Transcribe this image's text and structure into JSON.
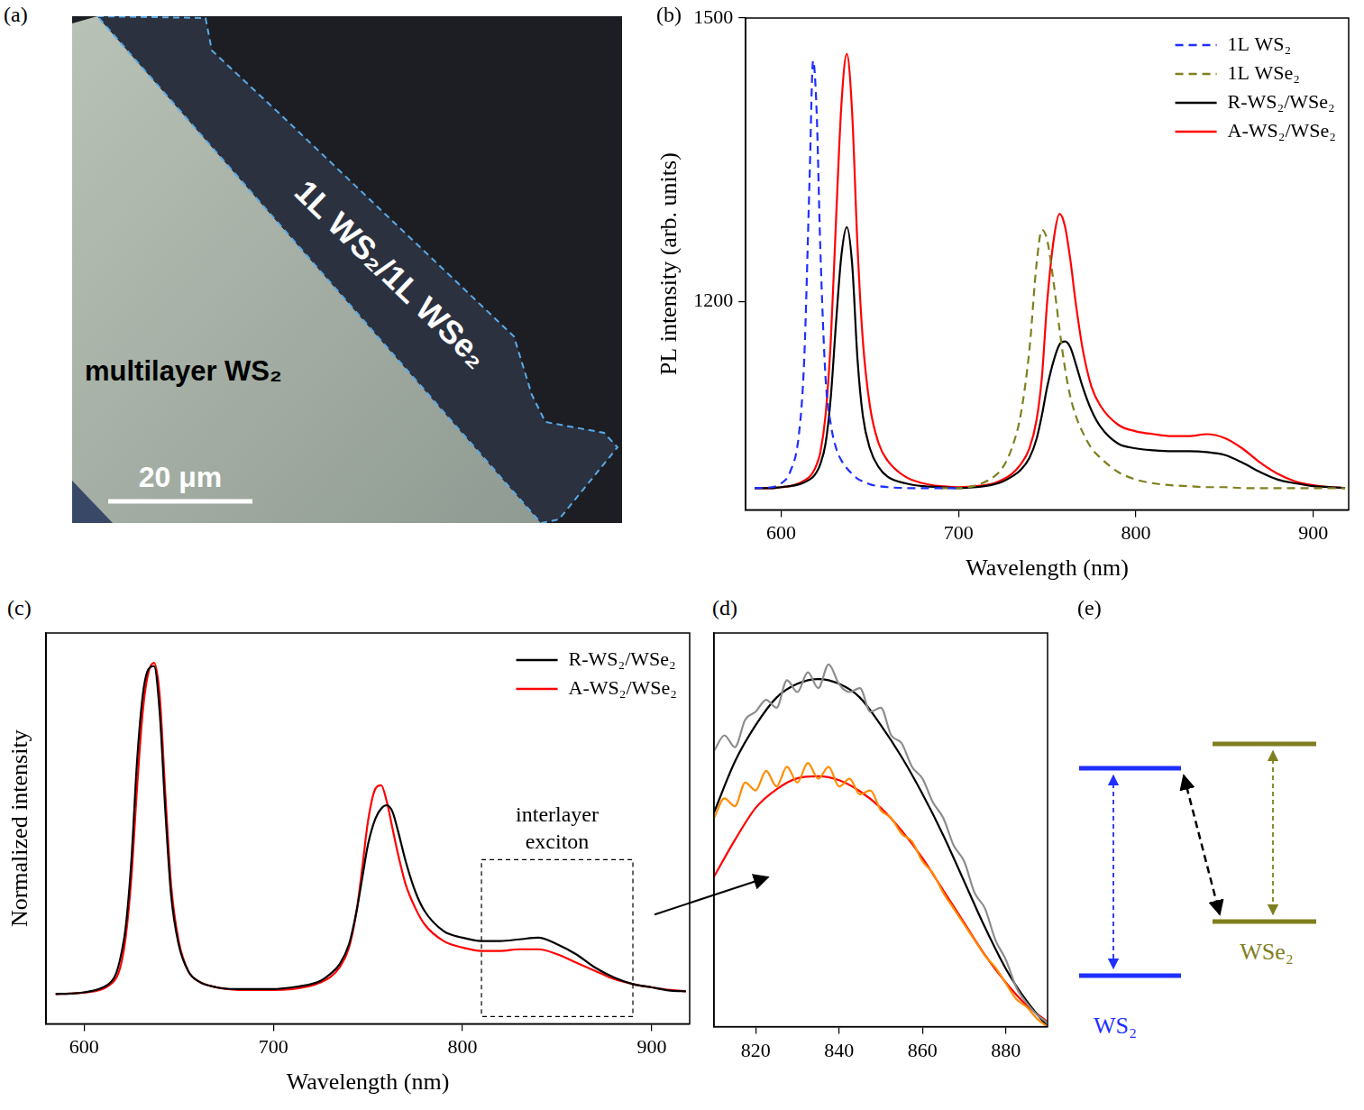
{
  "image": {
    "panel": "(a)",
    "heterostructure_label": "1L WS₂/1L WSe₂",
    "substrate_label": "multilayer WS₂",
    "scale_bar": "20 μm"
  },
  "chart_data": [
    {
      "type": "line",
      "panel": "(b)",
      "xlabel": "Wavelength (nm)",
      "ylabel": "PL intensity (arb. units)",
      "xlim": [
        580,
        920
      ],
      "xticks": [
        600,
        700,
        800,
        900
      ],
      "ylim": [
        980,
        1500
      ],
      "yticks": [
        1200,
        1500
      ],
      "legend": "top right",
      "x": [
        585,
        595,
        600,
        605,
        610,
        613,
        616,
        618,
        620,
        622,
        625,
        628,
        631,
        634,
        637,
        640,
        643,
        646,
        650,
        655,
        660,
        670,
        680,
        690,
        700,
        710,
        720,
        725,
        730,
        735,
        740,
        744,
        747,
        750,
        754,
        757,
        760,
        763,
        766,
        770,
        775,
        780,
        790,
        800,
        810,
        820,
        830,
        840,
        850,
        860,
        870,
        880,
        890,
        900,
        910,
        918
      ],
      "series": [
        {
          "name": "1L WS₂",
          "color": "#1f2fff",
          "line_style": "dashed",
          "values": [
            1003,
            1004,
            1008,
            1020,
            1060,
            1140,
            1330,
            1455,
            1400,
            1260,
            1120,
            1070,
            1045,
            1032,
            1024,
            1018,
            1013,
            1010,
            1007,
            1005,
            1004,
            1003,
            1003,
            1003,
            1003,
            null,
            null,
            null,
            null,
            null,
            null,
            null,
            null,
            null,
            null,
            null,
            null,
            null,
            null,
            null,
            null,
            null,
            null,
            null,
            null,
            null,
            null,
            null,
            null,
            null,
            null,
            null,
            null,
            null,
            null,
            null
          ]
        },
        {
          "name": "1L WSe₂",
          "color": "#7f7f1f",
          "line_style": "dashed",
          "values": [
            null,
            null,
            null,
            null,
            null,
            null,
            null,
            null,
            null,
            null,
            null,
            null,
            null,
            null,
            null,
            null,
            null,
            null,
            null,
            null,
            null,
            null,
            null,
            1003,
            1003,
            1006,
            1015,
            1025,
            1045,
            1080,
            1150,
            1240,
            1276,
            1265,
            1215,
            1170,
            1130,
            1100,
            1080,
            1062,
            1045,
            1035,
            1020,
            1012,
            1008,
            1006,
            1005,
            1004,
            1004,
            1003,
            1003,
            1003,
            1003,
            1003,
            1003,
            1003
          ]
        },
        {
          "name": "R-WS₂/WSe₂",
          "color": "#000000",
          "line_style": "solid",
          "values": [
            1003,
            1003,
            1004,
            1005,
            1007,
            1009,
            1012,
            1015,
            1020,
            1028,
            1050,
            1100,
            1180,
            1250,
            1279,
            1240,
            1140,
            1080,
            1045,
            1025,
            1015,
            1008,
            1005,
            1004,
            1003,
            1004,
            1007,
            1010,
            1015,
            1022,
            1035,
            1055,
            1080,
            1110,
            1140,
            1155,
            1158,
            1152,
            1135,
            1110,
            1085,
            1068,
            1050,
            1045,
            1043,
            1042,
            1042,
            1041,
            1038,
            1030,
            1020,
            1012,
            1008,
            1005,
            1004,
            1003
          ]
        },
        {
          "name": "A-WS₂/WSe₂",
          "color": "#ff0000",
          "line_style": "solid",
          "values": [
            1003,
            1003,
            1004,
            1005,
            1008,
            1011,
            1015,
            1020,
            1028,
            1040,
            1080,
            1160,
            1290,
            1410,
            1462,
            1400,
            1260,
            1160,
            1090,
            1050,
            1032,
            1015,
            1008,
            1005,
            1004,
            1005,
            1008,
            1012,
            1018,
            1028,
            1045,
            1075,
            1120,
            1200,
            1270,
            1293,
            1280,
            1245,
            1200,
            1150,
            1110,
            1090,
            1070,
            1063,
            1060,
            1058,
            1058,
            1060,
            1056,
            1045,
            1030,
            1018,
            1010,
            1006,
            1004,
            1003
          ]
        }
      ]
    },
    {
      "type": "line",
      "panel": "(c)",
      "xlabel": "Wavelength (nm)",
      "ylabel": "Normalized intensity",
      "xlim": [
        580,
        920
      ],
      "xticks": [
        600,
        700,
        800,
        900
      ],
      "ylim": [
        -0.09,
        1.09
      ],
      "yticks": [],
      "tick_labels": "x",
      "legend": "top right",
      "annotation": "interlayer exciton",
      "x": [
        585,
        595,
        600,
        605,
        610,
        613,
        616,
        618,
        620,
        622,
        625,
        628,
        631,
        634,
        637,
        640,
        643,
        646,
        650,
        655,
        660,
        670,
        680,
        690,
        700,
        710,
        720,
        725,
        730,
        735,
        740,
        744,
        747,
        750,
        754,
        757,
        760,
        763,
        766,
        770,
        775,
        780,
        790,
        800,
        810,
        820,
        830,
        840,
        850,
        860,
        870,
        880,
        890,
        900,
        910,
        918
      ],
      "series": [
        {
          "name": "R-WS₂/WSe₂",
          "color": "#000000",
          "values": [
            0,
            0.002,
            0.005,
            0.01,
            0.02,
            0.03,
            0.05,
            0.08,
            0.13,
            0.2,
            0.4,
            0.7,
            0.9,
            0.98,
            0.99,
            0.85,
            0.55,
            0.3,
            0.15,
            0.07,
            0.04,
            0.02,
            0.015,
            0.015,
            0.015,
            0.02,
            0.03,
            0.04,
            0.06,
            0.09,
            0.15,
            0.25,
            0.35,
            0.45,
            0.53,
            0.56,
            0.57,
            0.55,
            0.49,
            0.4,
            0.31,
            0.25,
            0.19,
            0.17,
            0.16,
            0.16,
            0.165,
            0.17,
            0.15,
            0.12,
            0.08,
            0.05,
            0.03,
            0.02,
            0.01,
            0.008
          ]
        },
        {
          "name": "A-WS₂/WSe₂",
          "color": "#ff0000",
          "values": [
            0,
            0.002,
            0.004,
            0.008,
            0.015,
            0.025,
            0.04,
            0.06,
            0.1,
            0.17,
            0.35,
            0.62,
            0.85,
            0.97,
            1.0,
            0.9,
            0.6,
            0.33,
            0.16,
            0.07,
            0.04,
            0.02,
            0.013,
            0.012,
            0.012,
            0.015,
            0.025,
            0.035,
            0.05,
            0.08,
            0.14,
            0.25,
            0.38,
            0.52,
            0.62,
            0.63,
            0.58,
            0.5,
            0.42,
            0.33,
            0.26,
            0.21,
            0.16,
            0.14,
            0.13,
            0.13,
            0.135,
            0.135,
            0.12,
            0.095,
            0.07,
            0.045,
            0.03,
            0.02,
            0.012,
            0.008
          ]
        }
      ]
    },
    {
      "type": "line",
      "panel": "(d)",
      "xlim": [
        810,
        890
      ],
      "xticks": [
        820,
        840,
        860,
        880
      ],
      "ylim": [
        0,
        1
      ],
      "yticks": [],
      "tick_labels": "x",
      "x": [
        810,
        812.5,
        815,
        817.5,
        820,
        822.5,
        825,
        827.5,
        830,
        832.5,
        835,
        837.5,
        840,
        842.5,
        845,
        847.5,
        850,
        852.5,
        855,
        857.5,
        860,
        862.5,
        865,
        867.5,
        870,
        872.5,
        875,
        877.5,
        880,
        882.5,
        885,
        887.5,
        890
      ],
      "series": [
        {
          "color": "#8c8c8c",
          "values": [
            0.7,
            0.74,
            0.71,
            0.78,
            0.8,
            0.83,
            0.81,
            0.88,
            0.85,
            0.9,
            0.86,
            0.92,
            0.87,
            0.85,
            0.86,
            0.8,
            0.81,
            0.74,
            0.72,
            0.66,
            0.63,
            0.57,
            0.53,
            0.46,
            0.42,
            0.34,
            0.3,
            0.22,
            0.17,
            0.1,
            0.06,
            0.03,
            0.01
          ]
        },
        {
          "color": "#ff8c00",
          "values": [
            0.53,
            0.58,
            0.56,
            0.62,
            0.6,
            0.65,
            0.61,
            0.66,
            0.62,
            0.67,
            0.63,
            0.66,
            0.61,
            0.63,
            0.59,
            0.6,
            0.55,
            0.53,
            0.49,
            0.47,
            0.42,
            0.39,
            0.34,
            0.3,
            0.26,
            0.22,
            0.18,
            0.15,
            0.11,
            0.07,
            0.05,
            0.02,
            0.0
          ]
        },
        {
          "color": "#000000",
          "values": [
            0.544,
            null,
            0.673,
            null,
            0.766,
            null,
            0.836,
            null,
            0.871,
            null,
            0.883,
            null,
            0.871,
            null,
            0.836,
            null,
            0.766,
            null,
            0.685,
            null,
            0.591,
            null,
            0.486,
            null,
            0.369,
            null,
            0.252,
            null,
            0.147,
            null,
            0.065,
            null,
            0.0
          ]
        },
        {
          "color": "#ff0000",
          "values": [
            0.381,
            null,
            0.474,
            null,
            0.556,
            null,
            0.603,
            null,
            0.631,
            null,
            0.636,
            null,
            0.626,
            null,
            0.598,
            null,
            0.556,
            null,
            0.498,
            null,
            0.428,
            null,
            0.346,
            null,
            0.264,
            null,
            0.182,
            null,
            0.112,
            null,
            0.054,
            null,
            0.012
          ]
        }
      ]
    }
  ],
  "diagram": {
    "panel": "(e)",
    "left_label": "WS₂",
    "right_label": "WSe₂"
  }
}
